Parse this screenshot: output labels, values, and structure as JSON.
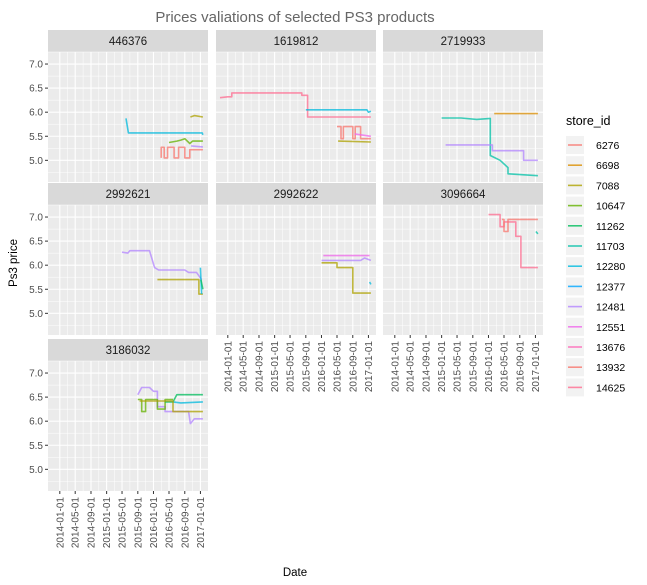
{
  "chart_data": {
    "type": "line",
    "title": "Prices valiations of selected PS3 products",
    "xlabel": "Date",
    "ylabel": "Ps3 price",
    "ylim": [
      4.55,
      7.25
    ],
    "yticks": [
      "5.0",
      "5.5",
      "6.0",
      "6.5",
      "7.0"
    ],
    "xlim": [
      "2013-10-01",
      "2017-03-01"
    ],
    "xticks": [
      "2014-01-01",
      "2014-05-01",
      "2014-09-01",
      "2015-01-01",
      "2015-05-01",
      "2015-09-01",
      "2016-01-01",
      "2016-05-01",
      "2016-09-01",
      "2017-01-01"
    ],
    "grid": true,
    "legend_position": "right",
    "legend": {
      "title": "store_id",
      "items": [
        {
          "id": "6276",
          "color": "#F8766D"
        },
        {
          "id": "6698",
          "color": "#DB8E00"
        },
        {
          "id": "7088",
          "color": "#AEA200"
        },
        {
          "id": "10647",
          "color": "#64B200"
        },
        {
          "id": "11262",
          "color": "#00BD5C"
        },
        {
          "id": "11703",
          "color": "#00C1A7"
        },
        {
          "id": "12280",
          "color": "#00BADE"
        },
        {
          "id": "12377",
          "color": "#00A6FF"
        },
        {
          "id": "12481",
          "color": "#B385FF"
        },
        {
          "id": "12551",
          "color": "#EF67EB"
        },
        {
          "id": "13676",
          "color": "#FF63B6"
        },
        {
          "id": "13932",
          "color": "#F8766D"
        },
        {
          "id": "14625",
          "color": "#FF6C90"
        }
      ]
    },
    "panels": [
      {
        "product": "446376",
        "series": [
          {
            "store": "12377",
            "color": "#00BADE",
            "points": [
              [
                "2015-06-01",
                5.87
              ],
              [
                "2015-06-20",
                5.57
              ],
              [
                "2017-01-15",
                5.57
              ],
              [
                "2017-01-20",
                5.53
              ]
            ]
          },
          {
            "store": "6276",
            "color": "#F8766D",
            "points": [
              [
                "2016-03-01",
                5.05
              ],
              [
                "2016-03-01",
                5.27
              ],
              [
                "2016-03-25",
                5.27
              ],
              [
                "2016-03-25",
                5.05
              ],
              [
                "2016-04-20",
                5.05
              ],
              [
                "2016-04-20",
                5.27
              ],
              [
                "2016-06-10",
                5.27
              ],
              [
                "2016-06-10",
                5.05
              ],
              [
                "2016-07-15",
                5.05
              ],
              [
                "2016-07-15",
                5.27
              ],
              [
                "2016-09-01",
                5.27
              ],
              [
                "2016-09-01",
                5.05
              ],
              [
                "2016-10-10",
                5.05
              ],
              [
                "2016-10-10",
                5.22
              ],
              [
                "2017-01-20",
                5.22
              ]
            ]
          },
          {
            "store": "11262",
            "color": "#64B200",
            "points": [
              [
                "2016-05-01",
                5.37
              ],
              [
                "2016-07-01",
                5.4
              ],
              [
                "2016-08-01",
                5.42
              ],
              [
                "2016-09-01",
                5.45
              ],
              [
                "2016-10-10",
                5.35
              ],
              [
                "2016-11-01",
                5.4
              ],
              [
                "2017-01-20",
                5.4
              ]
            ]
          },
          {
            "store": "7088",
            "color": "#AEA200",
            "points": [
              [
                "2016-10-15",
                5.9
              ],
              [
                "2016-11-15",
                5.93
              ],
              [
                "2017-01-20",
                5.9
              ]
            ]
          },
          {
            "store": "12481",
            "color": "#B385FF",
            "points": [
              [
                "2016-10-20",
                5.3
              ],
              [
                "2017-01-20",
                5.28
              ]
            ]
          }
        ]
      },
      {
        "product": "1619812",
        "series": [
          {
            "store": "14625",
            "color": "#FF6C90",
            "points": [
              [
                "2013-11-01",
                6.3
              ],
              [
                "2014-01-01",
                6.32
              ],
              [
                "2014-02-01",
                6.32
              ],
              [
                "2014-02-01",
                6.4
              ],
              [
                "2015-08-01",
                6.4
              ],
              [
                "2015-08-01",
                6.35
              ],
              [
                "2015-09-15",
                6.35
              ],
              [
                "2015-09-15",
                5.9
              ],
              [
                "2017-01-20",
                5.9
              ]
            ]
          },
          {
            "store": "12280",
            "color": "#00BADE",
            "points": [
              [
                "2015-09-01",
                6.05
              ],
              [
                "2016-12-20",
                6.05
              ],
              [
                "2017-01-01",
                6.0
              ],
              [
                "2017-01-20",
                6.02
              ]
            ]
          },
          {
            "store": "6276",
            "color": "#F8766D",
            "points": [
              [
                "2016-05-01",
                5.7
              ],
              [
                "2016-06-01",
                5.7
              ],
              [
                "2016-06-01",
                5.45
              ],
              [
                "2016-06-20",
                5.45
              ],
              [
                "2016-06-20",
                5.7
              ],
              [
                "2016-09-01",
                5.7
              ],
              [
                "2016-09-01",
                5.45
              ],
              [
                "2016-09-20",
                5.45
              ],
              [
                "2016-09-20",
                5.7
              ],
              [
                "2016-11-01",
                5.7
              ],
              [
                "2016-11-01",
                5.45
              ],
              [
                "2017-01-20",
                5.45
              ]
            ]
          },
          {
            "store": "7088",
            "color": "#AEA200",
            "points": [
              [
                "2016-05-10",
                5.4
              ],
              [
                "2017-01-20",
                5.38
              ]
            ]
          },
          {
            "store": "12551",
            "color": "#EF67EB",
            "points": [
              [
                "2016-09-15",
                5.55
              ],
              [
                "2017-01-20",
                5.5
              ]
            ]
          }
        ]
      },
      {
        "product": "2719933",
        "series": [
          {
            "store": "11703",
            "color": "#00C1A7",
            "points": [
              [
                "2015-01-01",
                5.88
              ],
              [
                "2015-06-01",
                5.88
              ],
              [
                "2015-10-01",
                5.85
              ],
              [
                "2016-01-15",
                5.87
              ],
              [
                "2016-01-15",
                5.1
              ],
              [
                "2016-04-01",
                5.0
              ],
              [
                "2016-06-01",
                4.85
              ],
              [
                "2016-06-01",
                4.72
              ],
              [
                "2017-01-20",
                4.68
              ]
            ]
          },
          {
            "store": "12481",
            "color": "#B385FF",
            "points": [
              [
                "2015-02-01",
                5.32
              ],
              [
                "2016-02-01",
                5.32
              ],
              [
                "2016-02-01",
                5.2
              ],
              [
                "2016-10-01",
                5.2
              ],
              [
                "2016-10-01",
                5.0
              ],
              [
                "2017-01-20",
                5.0
              ]
            ]
          },
          {
            "store": "7088",
            "color": "#DB8E00",
            "points": [
              [
                "2016-02-15",
                5.97
              ],
              [
                "2017-01-20",
                5.97
              ]
            ]
          }
        ]
      },
      {
        "product": "2992621",
        "series": [
          {
            "store": "12481",
            "color": "#B385FF",
            "points": [
              [
                "2015-05-01",
                6.27
              ],
              [
                "2015-06-15",
                6.25
              ],
              [
                "2015-07-01",
                6.3
              ],
              [
                "2015-12-01",
                6.3
              ],
              [
                "2016-01-10",
                5.95
              ],
              [
                "2016-02-10",
                5.9
              ],
              [
                "2016-09-01",
                5.9
              ],
              [
                "2016-10-01",
                5.85
              ],
              [
                "2016-12-01",
                5.85
              ],
              [
                "2017-01-10",
                5.7
              ]
            ]
          },
          {
            "store": "7088",
            "color": "#AEA200",
            "points": [
              [
                "2016-02-01",
                5.7
              ],
              [
                "2016-12-20",
                5.7
              ],
              [
                "2016-12-20",
                5.4
              ],
              [
                "2017-01-20",
                5.4
              ]
            ]
          },
          {
            "store": "12377",
            "color": "#00BADE",
            "points": [
              [
                "2017-01-01",
                5.95
              ],
              [
                "2017-01-10",
                5.4
              ]
            ]
          },
          {
            "store": "11703",
            "color": "#00BD5C",
            "points": [
              [
                "2017-01-05",
                5.7
              ],
              [
                "2017-01-20",
                5.5
              ]
            ]
          }
        ]
      },
      {
        "product": "2992622",
        "series": [
          {
            "store": "12551",
            "color": "#B385FF",
            "points": [
              [
                "2016-01-01",
                6.1
              ],
              [
                "2016-11-01",
                6.1
              ],
              [
                "2016-12-01",
                6.15
              ],
              [
                "2017-01-20",
                6.1
              ]
            ]
          },
          {
            "store": "13932",
            "color": "#EF67EB",
            "points": [
              [
                "2016-01-15",
                6.2
              ],
              [
                "2017-01-10",
                6.2
              ]
            ]
          },
          {
            "store": "6698",
            "color": "#AEA200",
            "points": [
              [
                "2016-01-01",
                6.05
              ],
              [
                "2016-05-01",
                6.05
              ],
              [
                "2016-05-01",
                5.95
              ],
              [
                "2016-09-01",
                5.95
              ],
              [
                "2016-09-01",
                5.42
              ],
              [
                "2017-01-20",
                5.42
              ]
            ]
          },
          {
            "store": "12377",
            "color": "#00BADE",
            "points": [
              [
                "2017-01-10",
                5.65
              ],
              [
                "2017-01-20",
                5.6
              ]
            ]
          }
        ]
      },
      {
        "product": "3096664",
        "series": [
          {
            "store": "14625",
            "color": "#FF6C90",
            "points": [
              [
                "2016-01-01",
                7.05
              ],
              [
                "2016-04-01",
                7.05
              ],
              [
                "2016-04-01",
                6.8
              ],
              [
                "2016-05-01",
                6.8
              ],
              [
                "2016-05-01",
                6.9
              ],
              [
                "2016-08-01",
                6.9
              ],
              [
                "2016-08-01",
                6.6
              ],
              [
                "2016-09-10",
                6.6
              ],
              [
                "2016-09-10",
                5.95
              ],
              [
                "2017-01-20",
                5.95
              ]
            ]
          },
          {
            "store": "6276",
            "color": "#F8766D",
            "points": [
              [
                "2016-04-15",
                6.95
              ],
              [
                "2016-05-01",
                6.95
              ],
              [
                "2016-05-01",
                6.7
              ],
              [
                "2016-06-01",
                6.7
              ],
              [
                "2016-06-01",
                6.95
              ],
              [
                "2017-01-20",
                6.95
              ]
            ]
          },
          {
            "store": "12280",
            "color": "#00C1A7",
            "points": [
              [
                "2017-01-05",
                6.7
              ],
              [
                "2017-01-20",
                6.65
              ]
            ]
          }
        ]
      },
      {
        "product": "3186032",
        "series": [
          {
            "store": "12481",
            "color": "#B385FF",
            "points": [
              [
                "2015-09-01",
                6.55
              ],
              [
                "2015-10-01",
                6.7
              ],
              [
                "2015-12-01",
                6.7
              ],
              [
                "2016-01-01",
                6.62
              ],
              [
                "2016-02-01",
                6.62
              ],
              [
                "2016-02-01",
                6.3
              ],
              [
                "2016-04-01",
                6.3
              ],
              [
                "2016-04-01",
                6.2
              ],
              [
                "2016-10-01",
                6.2
              ],
              [
                "2016-10-15",
                5.95
              ],
              [
                "2016-11-15",
                6.05
              ],
              [
                "2017-01-20",
                6.05
              ]
            ]
          },
          {
            "store": "10647",
            "color": "#64B200",
            "points": [
              [
                "2015-09-01",
                6.45
              ],
              [
                "2015-10-01",
                6.45
              ],
              [
                "2015-10-01",
                6.2
              ],
              [
                "2015-11-01",
                6.2
              ],
              [
                "2015-11-01",
                6.45
              ],
              [
                "2016-02-01",
                6.45
              ],
              [
                "2016-02-01",
                6.25
              ],
              [
                "2016-04-01",
                6.25
              ],
              [
                "2016-04-01",
                6.45
              ],
              [
                "2016-06-01",
                6.45
              ]
            ]
          },
          {
            "store": "11703",
            "color": "#00BD5C",
            "points": [
              [
                "2016-04-01",
                6.4
              ],
              [
                "2016-06-01",
                6.4
              ],
              [
                "2016-07-01",
                6.55
              ],
              [
                "2017-01-20",
                6.55
              ]
            ]
          },
          {
            "store": "12280",
            "color": "#00BADE",
            "points": [
              [
                "2016-06-01",
                6.4
              ],
              [
                "2016-08-01",
                6.38
              ],
              [
                "2017-01-20",
                6.4
              ]
            ]
          },
          {
            "store": "7088",
            "color": "#AEA200",
            "points": [
              [
                "2015-09-15",
                6.42
              ],
              [
                "2016-06-01",
                6.42
              ],
              [
                "2016-06-01",
                6.2
              ],
              [
                "2017-01-20",
                6.2
              ]
            ]
          }
        ]
      }
    ]
  }
}
